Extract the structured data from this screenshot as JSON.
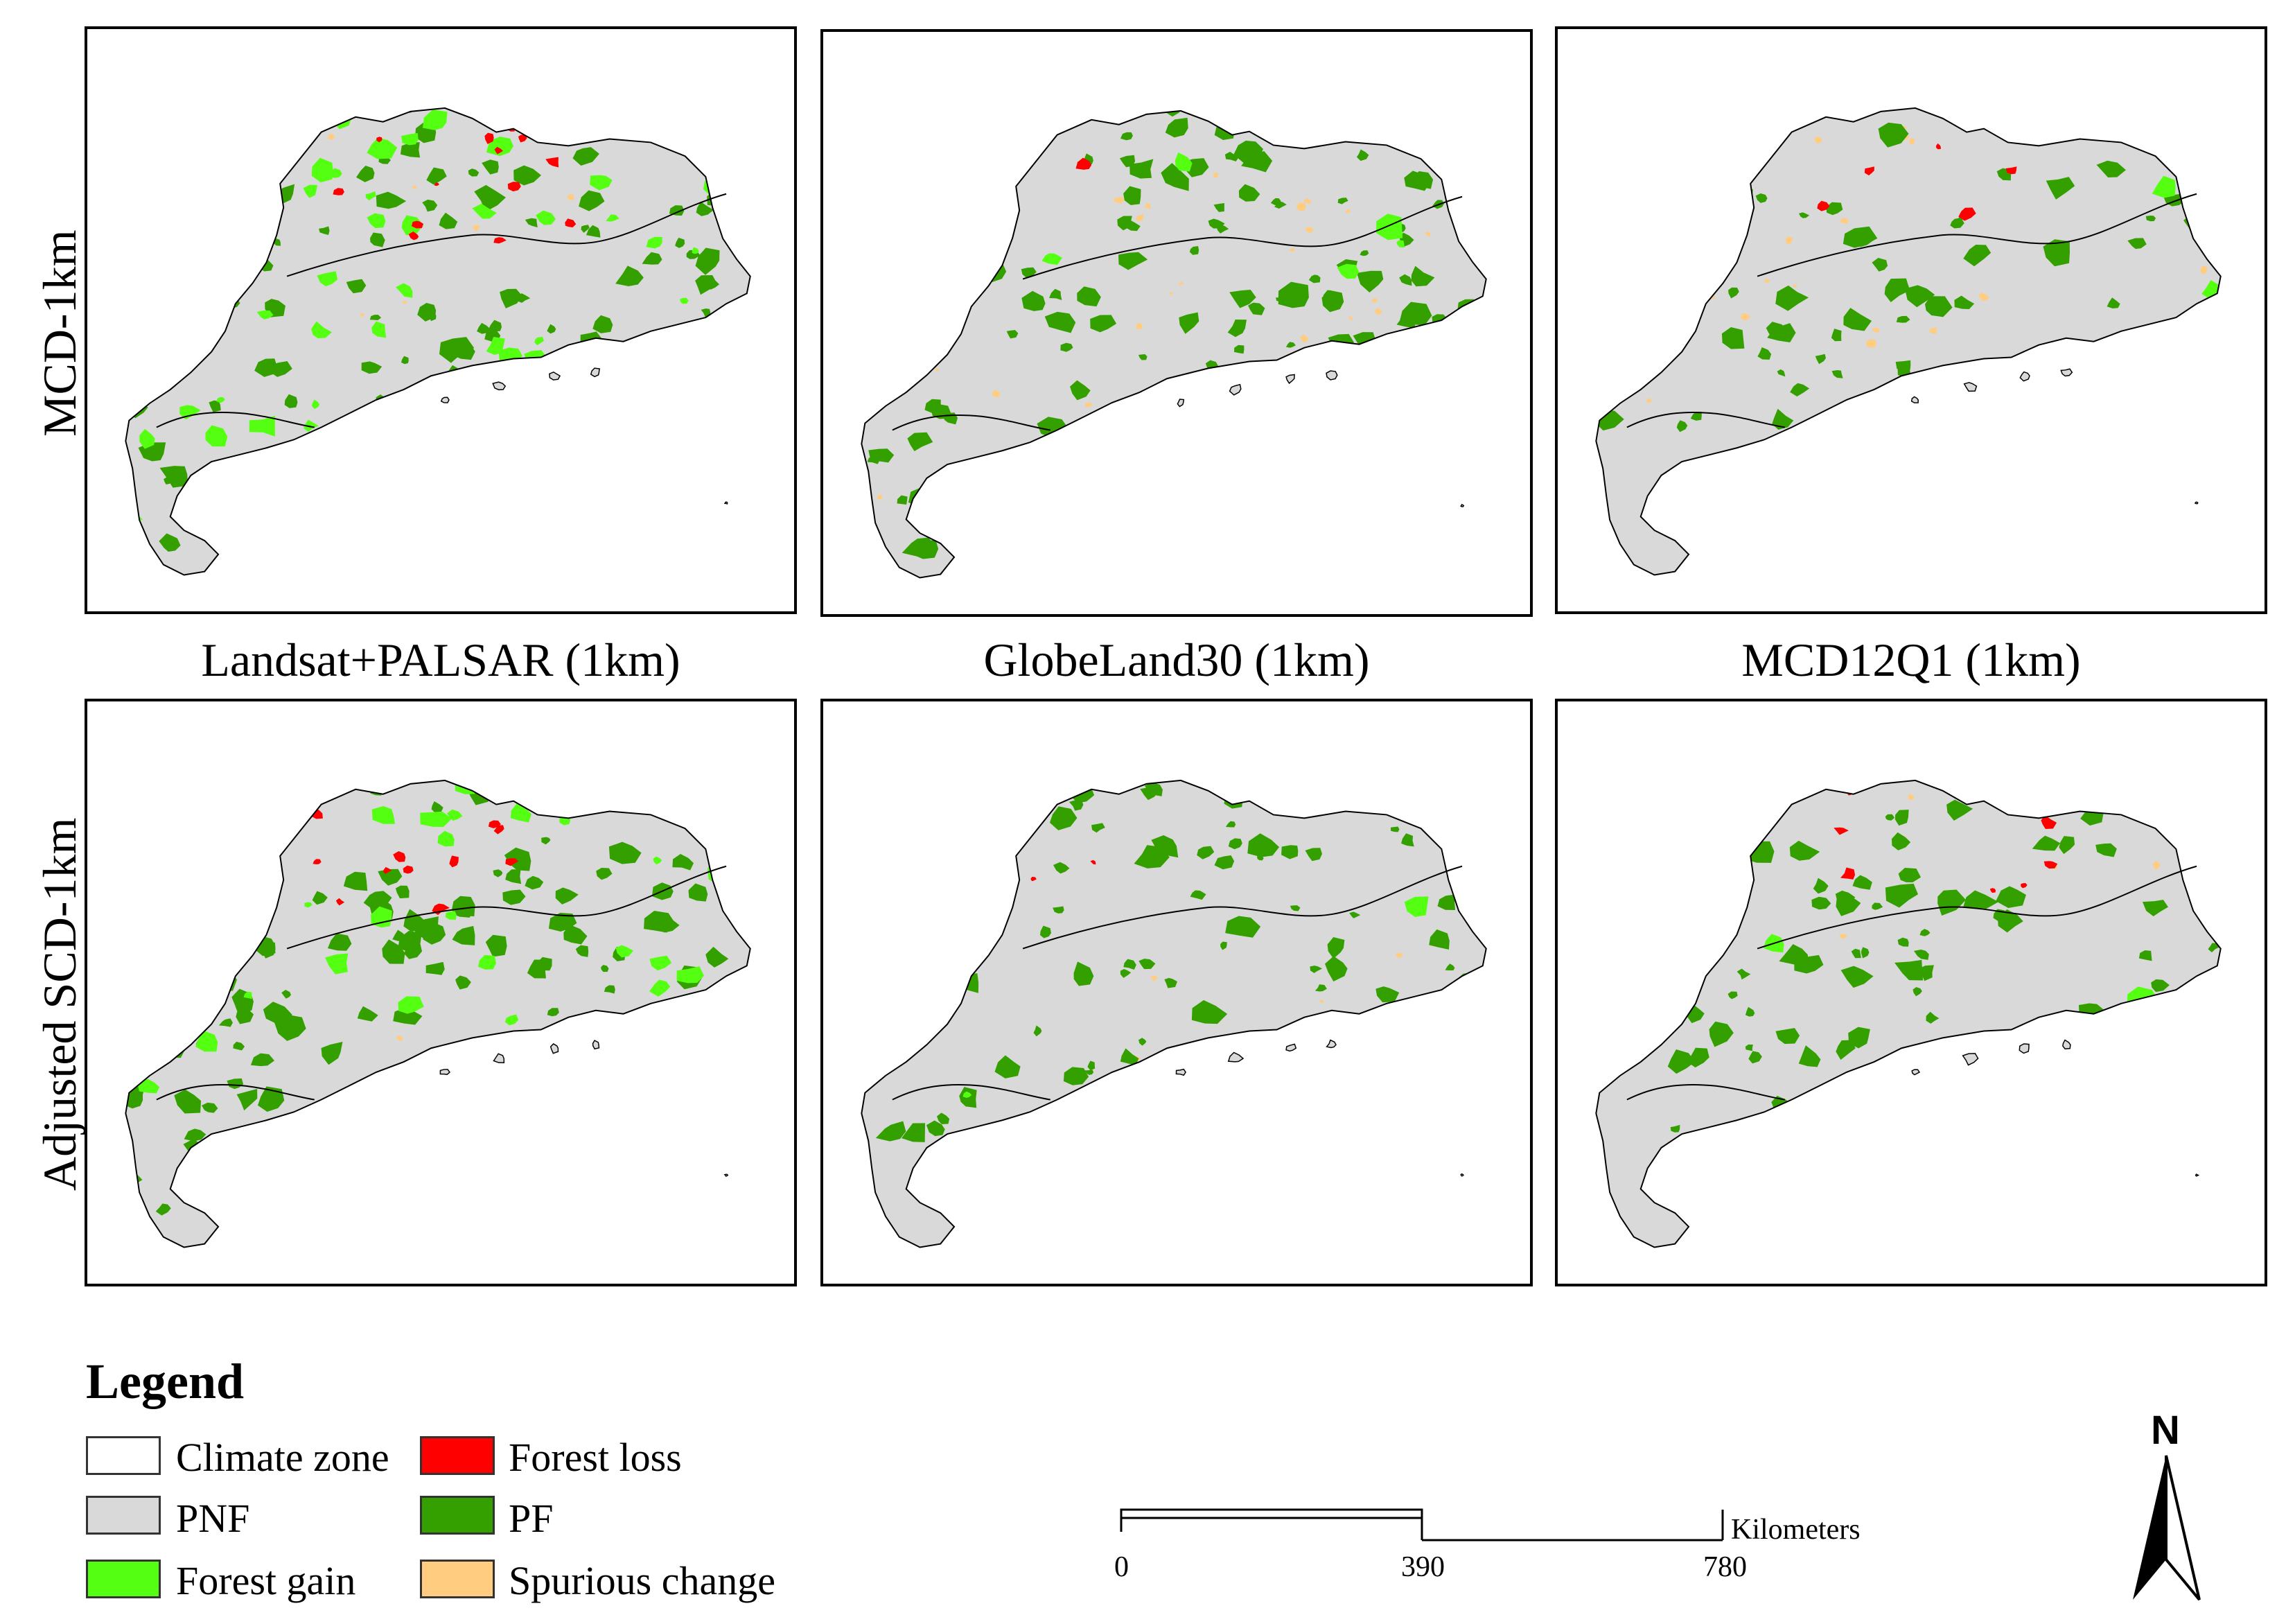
{
  "rows": [
    {
      "label": "MCD-1km"
    },
    {
      "label": "Adjusted SCD-1km"
    }
  ],
  "columns": [
    {
      "label": "Landsat+PALSAR (1km)"
    },
    {
      "label": "GlobeLand30 (1km)"
    },
    {
      "label": "MCD12Q1 (1km)"
    }
  ],
  "legend": {
    "title": "Legend",
    "items": [
      {
        "label": "Climate zone",
        "color": "#ffffff"
      },
      {
        "label": "Forest loss",
        "color": "#ff0000"
      },
      {
        "label": "PNF",
        "color": "#d9d9d9"
      },
      {
        "label": "PF",
        "color": "#33a000"
      },
      {
        "label": "Forest gain",
        "color": "#55ff11"
      },
      {
        "label": "Spurious change",
        "color": "#ffcc80"
      }
    ]
  },
  "scale_bar": {
    "unit": "Kilometers",
    "ticks": [
      "0",
      "390",
      "780"
    ]
  },
  "north_arrow": {
    "label": "N",
    "icon": "north-arrow-icon"
  },
  "map_colors": {
    "pnf": "#d9d9d9",
    "pf": "#33a000",
    "gain": "#55ff11",
    "loss": "#ff0000",
    "spurious": "#ffcc80",
    "outline": "#000000"
  }
}
